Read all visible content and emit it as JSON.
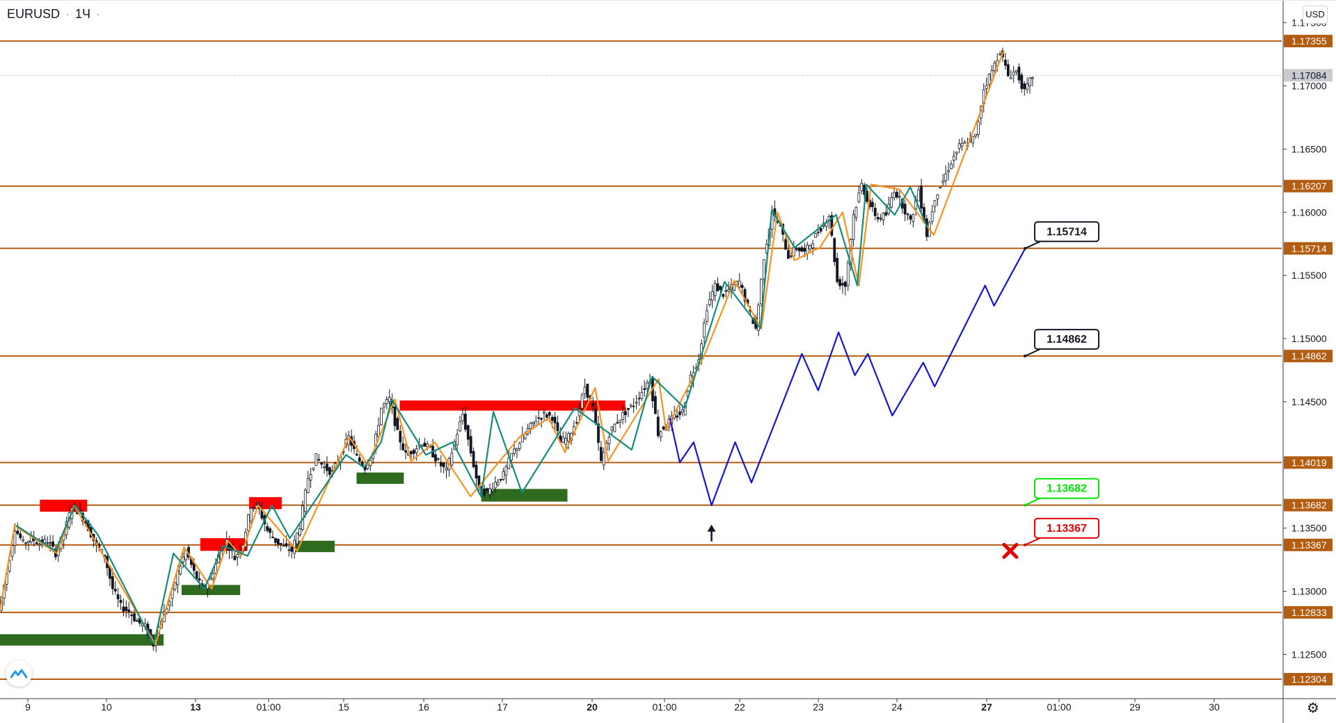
{
  "header": {
    "symbol": "EURUSD",
    "separator": "·",
    "interval": "1Ч",
    "dash": "·"
  },
  "currency_label": "USD",
  "chart_data": {
    "type": "candlestick",
    "symbol": "EURUSD",
    "interval": "1Ч",
    "ylim": [
      1.1215,
      1.1768
    ],
    "y_ticks": [
      "1.17500",
      "1.17000",
      "1.16500",
      "1.16000",
      "1.15500",
      "1.15000",
      "1.14500",
      "1.13500",
      "1.13000",
      "1.12500"
    ],
    "y_tick_values": [
      1.175,
      1.17,
      1.165,
      1.16,
      1.155,
      1.15,
      1.145,
      1.135,
      1.13,
      1.125
    ],
    "x_ticks": [
      {
        "label": "9",
        "bold": false
      },
      {
        "label": "10",
        "bold": false
      },
      {
        "label": "13",
        "bold": true
      },
      {
        "label": "01:00",
        "bold": false
      },
      {
        "label": "15",
        "bold": false
      },
      {
        "label": "16",
        "bold": false
      },
      {
        "label": "17",
        "bold": false
      },
      {
        "label": "20",
        "bold": true
      },
      {
        "label": "01:00",
        "bold": false
      },
      {
        "label": "22",
        "bold": false
      },
      {
        "label": "23",
        "bold": false
      },
      {
        "label": "24",
        "bold": false
      },
      {
        "label": "27",
        "bold": true
      },
      {
        "label": "01:00",
        "bold": false
      },
      {
        "label": "29",
        "bold": false
      },
      {
        "label": "30",
        "bold": false
      }
    ],
    "last_price": "1.17084",
    "last_price_value": 1.17084,
    "levels": [
      {
        "label": "1.17355",
        "value": 1.17355
      },
      {
        "label": "1.16207",
        "value": 1.16207
      },
      {
        "label": "1.15714",
        "value": 1.15714
      },
      {
        "label": "1.14862",
        "value": 1.14862
      },
      {
        "label": "1.14019",
        "value": 1.14019
      },
      {
        "label": "1.13682",
        "value": 1.13682
      },
      {
        "label": "1.13367",
        "value": 1.13367
      },
      {
        "label": "1.12833",
        "value": 1.12833
      },
      {
        "label": "1.12304",
        "value": 1.12304
      }
    ],
    "price_path_points": [
      [
        0,
        1.1285
      ],
      [
        1,
        1.1315
      ],
      [
        2,
        1.135
      ],
      [
        3,
        1.1338
      ],
      [
        4,
        1.1342
      ],
      [
        5,
        1.1338
      ],
      [
        6,
        1.134
      ],
      [
        7,
        1.133
      ],
      [
        8,
        1.1345
      ],
      [
        9,
        1.1368
      ],
      [
        10,
        1.1362
      ],
      [
        11,
        1.135
      ],
      [
        12,
        1.1336
      ],
      [
        13,
        1.1328
      ],
      [
        14,
        1.1302
      ],
      [
        15,
        1.1288
      ],
      [
        16,
        1.1284
      ],
      [
        17,
        1.1276
      ],
      [
        18,
        1.1272
      ],
      [
        19,
        1.1258
      ],
      [
        20,
        1.1278
      ],
      [
        21,
        1.1292
      ],
      [
        22,
        1.1315
      ],
      [
        23,
        1.1332
      ],
      [
        24,
        1.1315
      ],
      [
        25,
        1.1302
      ],
      [
        26,
        1.131
      ],
      [
        27,
        1.1328
      ],
      [
        28,
        1.134
      ],
      [
        29,
        1.1326
      ],
      [
        30,
        1.1338
      ],
      [
        31,
        1.1368
      ],
      [
        32,
        1.1365
      ],
      [
        33,
        1.1348
      ],
      [
        34,
        1.134
      ],
      [
        35,
        1.1335
      ],
      [
        36,
        1.1332
      ],
      [
        37,
        1.1352
      ],
      [
        38,
        1.139
      ],
      [
        39,
        1.1406
      ],
      [
        40,
        1.1398
      ],
      [
        41,
        1.1394
      ],
      [
        42,
        1.1408
      ],
      [
        43,
        1.1422
      ],
      [
        44,
        1.1406
      ],
      [
        45,
        1.1398
      ],
      [
        46,
        1.141
      ],
      [
        47,
        1.1445
      ],
      [
        48,
        1.1452
      ],
      [
        49,
        1.1425
      ],
      [
        50,
        1.1408
      ],
      [
        51,
        1.1412
      ],
      [
        52,
        1.1418
      ],
      [
        53,
        1.1412
      ],
      [
        54,
        1.1402
      ],
      [
        55,
        1.1395
      ],
      [
        56,
        1.1418
      ],
      [
        57,
        1.144
      ],
      [
        58,
        1.141
      ],
      [
        59,
        1.138
      ],
      [
        60,
        1.1378
      ],
      [
        61,
        1.1386
      ],
      [
        62,
        1.1392
      ],
      [
        63,
        1.1408
      ],
      [
        64,
        1.1418
      ],
      [
        65,
        1.1428
      ],
      [
        66,
        1.1436
      ],
      [
        67,
        1.144
      ],
      [
        68,
        1.1438
      ],
      [
        69,
        1.1418
      ],
      [
        70,
        1.1422
      ],
      [
        71,
        1.1436
      ],
      [
        72,
        1.1462
      ],
      [
        73,
        1.1445
      ],
      [
        74,
        1.1402
      ],
      [
        75,
        1.1425
      ],
      [
        76,
        1.1435
      ],
      [
        77,
        1.1442
      ],
      [
        78,
        1.1448
      ],
      [
        79,
        1.1458
      ],
      [
        80,
        1.1468
      ],
      [
        81,
        1.1425
      ],
      [
        82,
        1.1432
      ],
      [
        83,
        1.1438
      ],
      [
        84,
        1.1442
      ],
      [
        85,
        1.147
      ],
      [
        86,
        1.1485
      ],
      [
        87,
        1.1525
      ],
      [
        88,
        1.1542
      ],
      [
        89,
        1.1535
      ],
      [
        90,
        1.154
      ],
      [
        91,
        1.1545
      ],
      [
        92,
        1.1525
      ],
      [
        93,
        1.1508
      ],
      [
        94,
        1.1565
      ],
      [
        95,
        1.16
      ],
      [
        96,
        1.1588
      ],
      [
        97,
        1.1565
      ],
      [
        98,
        1.1572
      ],
      [
        99,
        1.1568
      ],
      [
        100,
        1.1578
      ],
      [
        101,
        1.1588
      ],
      [
        102,
        1.1598
      ],
      [
        103,
        1.1545
      ],
      [
        104,
        1.1542
      ],
      [
        105,
        1.1598
      ],
      [
        106,
        1.1622
      ],
      [
        107,
        1.1605
      ],
      [
        108,
        1.1595
      ],
      [
        109,
        1.1598
      ],
      [
        110,
        1.1618
      ],
      [
        111,
        1.1606
      ],
      [
        112,
        1.1592
      ],
      [
        113,
        1.1618
      ],
      [
        114,
        1.1582
      ],
      [
        115,
        1.1612
      ],
      [
        116,
        1.1625
      ],
      [
        117,
        1.164
      ],
      [
        118,
        1.1652
      ],
      [
        119,
        1.1655
      ],
      [
        120,
        1.166
      ],
      [
        121,
        1.1698
      ],
      [
        122,
        1.1712
      ],
      [
        123,
        1.1728
      ],
      [
        124,
        1.1708
      ],
      [
        125,
        1.1712
      ],
      [
        126,
        1.1695
      ],
      [
        127,
        1.1708
      ]
    ],
    "orange_zigzag": [
      [
        0,
        1.1285
      ],
      [
        1.8,
        1.1352
      ],
      [
        7,
        1.133
      ],
      [
        9.1,
        1.1368
      ],
      [
        19.1,
        1.1258
      ],
      [
        22.6,
        1.1335
      ],
      [
        26,
        1.1302
      ],
      [
        28,
        1.134
      ],
      [
        29.6,
        1.1328
      ],
      [
        31.7,
        1.1368
      ],
      [
        36.5,
        1.1332
      ],
      [
        42.9,
        1.1422
      ],
      [
        45.2,
        1.14
      ],
      [
        48.5,
        1.1452
      ],
      [
        50.5,
        1.1403
      ],
      [
        53.4,
        1.1418
      ],
      [
        57.8,
        1.1375
      ],
      [
        63.8,
        1.1422
      ],
      [
        67.4,
        1.1437
      ],
      [
        69.4,
        1.141
      ],
      [
        73.1,
        1.1461
      ],
      [
        74.7,
        1.1403
      ],
      [
        80.9,
        1.1468
      ],
      [
        81.8,
        1.1428
      ],
      [
        86.4,
        1.1485
      ],
      [
        90.2,
        1.1546
      ],
      [
        93.5,
        1.1508
      ],
      [
        95.5,
        1.16
      ],
      [
        97.6,
        1.1562
      ],
      [
        100.7,
        1.1572
      ],
      [
        103.5,
        1.16
      ],
      [
        105.5,
        1.1542
      ],
      [
        107,
        1.1622
      ],
      [
        110.5,
        1.1618
      ],
      [
        114.7,
        1.1582
      ],
      [
        119.4,
        1.1662
      ],
      [
        123.3,
        1.1728
      ]
    ],
    "teal_zigzag": [
      [
        2,
        1.1352
      ],
      [
        6.8,
        1.1332
      ],
      [
        9.2,
        1.1368
      ],
      [
        12,
        1.1345
      ],
      [
        18.9,
        1.1258
      ],
      [
        21.3,
        1.133
      ],
      [
        25.1,
        1.1302
      ],
      [
        27.4,
        1.1336
      ],
      [
        30.4,
        1.1328
      ],
      [
        33.4,
        1.1368
      ],
      [
        35.6,
        1.1342
      ],
      [
        42.5,
        1.1408
      ],
      [
        44.7,
        1.1398
      ],
      [
        46.8,
        1.1418
      ],
      [
        48.1,
        1.1452
      ],
      [
        52.3,
        1.1408
      ],
      [
        55.6,
        1.1418
      ],
      [
        59.1,
        1.1375
      ],
      [
        60.6,
        1.1442
      ],
      [
        64.1,
        1.1378
      ],
      [
        70.6,
        1.1445
      ],
      [
        77.6,
        1.1412
      ],
      [
        80.1,
        1.147
      ],
      [
        84.1,
        1.1445
      ],
      [
        89,
        1.1545
      ],
      [
        93.4,
        1.1508
      ],
      [
        94.8,
        1.1602
      ],
      [
        97.6,
        1.1572
      ],
      [
        102.7,
        1.1598
      ],
      [
        105.3,
        1.1542
      ],
      [
        106.4,
        1.1622
      ],
      [
        109.9,
        1.1598
      ],
      [
        111.8,
        1.162
      ],
      [
        113.9,
        1.1588
      ]
    ],
    "supply_zones": [
      {
        "x0": 4.9,
        "x1": 10.7,
        "y0": 1.13725,
        "y1": 1.1363
      },
      {
        "x0": 24.6,
        "x1": 30.4,
        "y0": 1.1342,
        "y1": 1.1332
      },
      {
        "x0": 30.6,
        "x1": 34.6,
        "y0": 1.13745,
        "y1": 1.1365
      },
      {
        "x0": 49.1,
        "x1": 76.8,
        "y0": 1.1451,
        "y1": 1.1443
      }
    ],
    "demand_zones": [
      {
        "x0": 0,
        "x1": 20.1,
        "y0": 1.1266,
        "y1": 1.1257
      },
      {
        "x0": 22.3,
        "x1": 29.5,
        "y0": 1.1305,
        "y1": 1.1297
      },
      {
        "x0": 36.2,
        "x1": 41.1,
        "y0": 1.134,
        "y1": 1.1331
      },
      {
        "x0": 43.8,
        "x1": 49.6,
        "y0": 1.1394,
        "y1": 1.1385
      },
      {
        "x0": 59.1,
        "x1": 69.7,
        "y0": 1.1381,
        "y1": 1.1371
      }
    ],
    "projection_path": [
      [
        82.3,
        1.1437
      ],
      [
        83.5,
        1.1402
      ],
      [
        85.2,
        1.1418
      ],
      [
        87.4,
        1.1368
      ],
      [
        90.3,
        1.1418
      ],
      [
        92.3,
        1.1386
      ],
      [
        98.5,
        1.1488
      ],
      [
        100.5,
        1.1459
      ],
      [
        103,
        1.1505
      ],
      [
        105,
        1.1471
      ],
      [
        106.6,
        1.1488
      ],
      [
        109.6,
        1.1439
      ],
      [
        113.4,
        1.1481
      ],
      [
        114.8,
        1.1462
      ],
      [
        121,
        1.1542
      ],
      [
        122.1,
        1.1526
      ],
      [
        125.9,
        1.1571
      ]
    ],
    "callouts": [
      {
        "label": "1.15714",
        "style": "black",
        "anchor": [
          125.9,
          1.15714
        ]
      },
      {
        "label": "1.14862",
        "style": "black",
        "anchor": [
          125.9,
          1.14862
        ]
      },
      {
        "label": "1.13682",
        "style": "green",
        "anchor": [
          125.9,
          1.13682
        ]
      },
      {
        "label": "1.13367",
        "style": "red",
        "anchor": [
          125.9,
          1.13367
        ]
      }
    ],
    "arrow_marker": {
      "x": 87.4,
      "y": 1.1345,
      "direction": "up"
    },
    "cross_marker": {
      "x": 124.1,
      "y": 1.1332
    },
    "colors": {
      "level_line": "#b35d12",
      "level_label_bg": "#b35d12",
      "orange_zigzag": "#f7931e",
      "teal_zigzag": "#138a7e",
      "supply_zone": "#ff0000",
      "demand_zone": "#2e6b1f",
      "projection": "#1414d6",
      "candle": "#131722",
      "last_price_bg": "#c9cbd1",
      "callout_black": "#131722",
      "callout_green": "#00e600",
      "callout_red": "#e00000",
      "cross": "#e00000"
    }
  }
}
